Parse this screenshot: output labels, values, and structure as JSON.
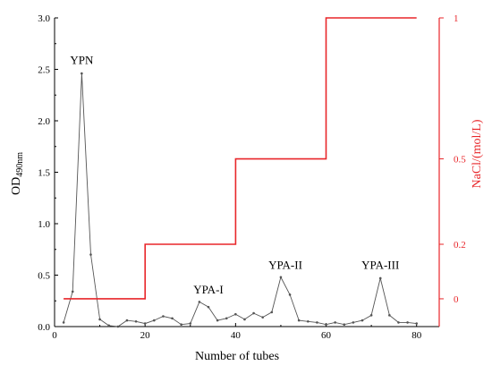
{
  "chart_data": {
    "type": "line",
    "xlabel": "Number of tubes",
    "ylabel": {
      "main": "OD",
      "sub": "490nm"
    },
    "y2label": "NaCl/(mol/L)",
    "xlim": [
      0,
      85
    ],
    "ylim": [
      0,
      3.0
    ],
    "xticks": [
      0,
      20,
      40,
      60,
      80
    ],
    "yticks": [
      0.0,
      0.5,
      1.0,
      1.5,
      2.0,
      2.5,
      3.0
    ],
    "yticks_labels": [
      "0.0",
      "0.5",
      "1.0",
      "1.5",
      "2.0",
      "2.5",
      "3.0"
    ],
    "y2ticks": [
      {
        "label": "0",
        "y": 0.27
      },
      {
        "label": "0.2",
        "y": 0.8
      },
      {
        "label": "0.5",
        "y": 1.63
      },
      {
        "label": "1",
        "y": 3.0
      }
    ],
    "series": [
      {
        "color": "#555555",
        "x": [
          2,
          4,
          6,
          8,
          10,
          12,
          14,
          16,
          18,
          20,
          22,
          24,
          26,
          28,
          30,
          32,
          34,
          36,
          38,
          40,
          42,
          44,
          46,
          48,
          50,
          52,
          54,
          56,
          58,
          60,
          62,
          64,
          66,
          68,
          70,
          72,
          74,
          76,
          78,
          80
        ],
        "y": [
          0.04,
          0.34,
          2.46,
          0.7,
          0.07,
          0.01,
          0.0,
          0.06,
          0.05,
          0.03,
          0.06,
          0.1,
          0.08,
          0.02,
          0.03,
          0.24,
          0.19,
          0.06,
          0.08,
          0.12,
          0.07,
          0.13,
          0.09,
          0.14,
          0.48,
          0.31,
          0.06,
          0.05,
          0.04,
          0.02,
          0.04,
          0.02,
          0.04,
          0.06,
          0.11,
          0.47,
          0.11,
          0.04,
          0.04,
          0.03
        ]
      },
      {
        "color": "#e8262a",
        "step": true,
        "x": [
          2,
          20,
          20,
          40,
          40,
          60,
          60,
          80
        ],
        "y": [
          0.27,
          0.27,
          0.8,
          0.8,
          1.63,
          1.63,
          3.0,
          3.0
        ]
      }
    ],
    "annotations": [
      {
        "text": "YPN",
        "x": 6,
        "y": 2.5
      },
      {
        "text": "YPA-I",
        "x": 34,
        "y": 0.27
      },
      {
        "text": "YPA-II",
        "x": 51,
        "y": 0.51
      },
      {
        "text": "YPA-III",
        "x": 72,
        "y": 0.51
      }
    ],
    "colors": {
      "axis": "#000000",
      "nacl_axis": "#e8262a"
    }
  }
}
